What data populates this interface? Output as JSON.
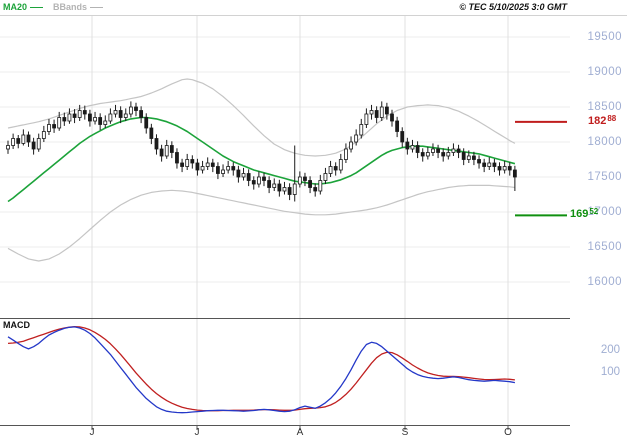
{
  "header": {
    "legend": [
      {
        "label": "MA20",
        "color": "#1ca33a"
      },
      {
        "label": "BBands",
        "color": "#b3b3b3"
      }
    ],
    "copyright": "© TEC 5/10/2025 3:0 GMT"
  },
  "price_axis": {
    "labels": [
      19500,
      19000,
      18500,
      18000,
      17500,
      17000,
      16500,
      16000
    ],
    "color": "#a0aed2"
  },
  "markers": {
    "upper": {
      "price": 18288,
      "main": "182",
      "sup": "88",
      "color": "#c01d1d"
    },
    "lower": {
      "price": 16952,
      "main": "169",
      "sup": "52",
      "color": "#0f8f0f"
    }
  },
  "macd": {
    "title": "MACD",
    "axis_labels": [
      200,
      100
    ]
  },
  "x_axis": {
    "ticks": [
      "J",
      "J",
      "A",
      "S",
      "O"
    ]
  },
  "chart_data": {
    "type": "candlestick",
    "title": "",
    "xlabel": "",
    "ylabel": "",
    "ylim": [
      16000,
      19500
    ],
    "x_tick_labels": [
      "J",
      "J",
      "A",
      "S",
      "O"
    ],
    "overlays": [
      "MA20",
      "Bollinger Bands"
    ],
    "sub_panel": {
      "type": "line",
      "name": "MACD",
      "ylim": [
        -140,
        345
      ],
      "axis_labels": [
        200,
        100
      ]
    },
    "colors": {
      "candle": "#1b1b1b",
      "ma20": "#1ca33a",
      "bbands": "#c5c5c5",
      "macd_fast": "#2438c8",
      "macd_signal": "#c02020",
      "marker_upper": "#c01d1d",
      "marker_lower": "#0f8f0f"
    },
    "series": {
      "candles": [
        [
          17900,
          18020,
          17830,
          17950
        ],
        [
          17950,
          18120,
          17900,
          18050
        ],
        [
          18050,
          18100,
          17910,
          17980
        ],
        [
          17980,
          18180,
          17950,
          18100
        ],
        [
          18100,
          18150,
          17930,
          18000
        ],
        [
          18000,
          18060,
          17820,
          17900
        ],
        [
          17900,
          18120,
          17860,
          18050
        ],
        [
          18050,
          18230,
          18000,
          18150
        ],
        [
          18150,
          18330,
          18100,
          18250
        ],
        [
          18250,
          18320,
          18130,
          18200
        ],
        [
          18200,
          18430,
          18160,
          18350
        ],
        [
          18350,
          18420,
          18230,
          18300
        ],
        [
          18300,
          18480,
          18260,
          18400
        ],
        [
          18400,
          18470,
          18270,
          18350
        ],
        [
          18350,
          18530,
          18300,
          18450
        ],
        [
          18450,
          18520,
          18320,
          18400
        ],
        [
          18400,
          18460,
          18220,
          18300
        ],
        [
          18300,
          18430,
          18250,
          18350
        ],
        [
          18350,
          18410,
          18170,
          18250
        ],
        [
          18250,
          18380,
          18200,
          18300
        ],
        [
          18300,
          18480,
          18260,
          18400
        ],
        [
          18400,
          18530,
          18350,
          18450
        ],
        [
          18450,
          18510,
          18270,
          18350
        ],
        [
          18350,
          18480,
          18300,
          18400
        ],
        [
          18400,
          18580,
          18350,
          18500
        ],
        [
          18500,
          18560,
          18370,
          18450
        ],
        [
          18450,
          18510,
          18270,
          18350
        ],
        [
          18350,
          18410,
          18120,
          18200
        ],
        [
          18200,
          18260,
          17970,
          18050
        ],
        [
          18050,
          18110,
          17820,
          17900
        ],
        [
          17900,
          17960,
          17720,
          17800
        ],
        [
          17800,
          18030,
          17760,
          17950
        ],
        [
          17950,
          18010,
          17770,
          17850
        ],
        [
          17850,
          17910,
          17620,
          17700
        ],
        [
          17700,
          17760,
          17570,
          17650
        ],
        [
          17650,
          17830,
          17600,
          17750
        ],
        [
          17750,
          17810,
          17620,
          17700
        ],
        [
          17700,
          17760,
          17520,
          17600
        ],
        [
          17600,
          17730,
          17550,
          17650
        ],
        [
          17650,
          17780,
          17600,
          17700
        ],
        [
          17700,
          17760,
          17570,
          17650
        ],
        [
          17650,
          17710,
          17470,
          17550
        ],
        [
          17550,
          17680,
          17500,
          17600
        ],
        [
          17600,
          17730,
          17550,
          17650
        ],
        [
          17650,
          17710,
          17520,
          17600
        ],
        [
          17600,
          17660,
          17420,
          17500
        ],
        [
          17500,
          17630,
          17450,
          17550
        ],
        [
          17550,
          17610,
          17370,
          17450
        ],
        [
          17450,
          17510,
          17320,
          17400
        ],
        [
          17400,
          17580,
          17350,
          17500
        ],
        [
          17500,
          17560,
          17370,
          17450
        ],
        [
          17450,
          17510,
          17270,
          17350
        ],
        [
          17350,
          17480,
          17300,
          17400
        ],
        [
          17400,
          17460,
          17220,
          17300
        ],
        [
          17300,
          17430,
          17250,
          17350
        ],
        [
          17350,
          17410,
          17170,
          17250
        ],
        [
          17250,
          17950,
          17150,
          17400
        ],
        [
          17400,
          17580,
          17350,
          17500
        ],
        [
          17500,
          17560,
          17370,
          17450
        ],
        [
          17450,
          17510,
          17270,
          17350
        ],
        [
          17350,
          17410,
          17220,
          17300
        ],
        [
          17300,
          17530,
          17250,
          17450
        ],
        [
          17450,
          17630,
          17400,
          17550
        ],
        [
          17550,
          17730,
          17500,
          17650
        ],
        [
          17650,
          17710,
          17520,
          17600
        ],
        [
          17600,
          17830,
          17550,
          17750
        ],
        [
          17750,
          17980,
          17700,
          17900
        ],
        [
          17900,
          18080,
          17850,
          18000
        ],
        [
          18000,
          18180,
          17950,
          18100
        ],
        [
          18100,
          18330,
          18050,
          18250
        ],
        [
          18250,
          18480,
          18200,
          18400
        ],
        [
          18400,
          18530,
          18320,
          18450
        ],
        [
          18450,
          18510,
          18270,
          18350
        ],
        [
          18350,
          18580,
          18300,
          18500
        ],
        [
          18500,
          18560,
          18320,
          18400
        ],
        [
          18400,
          18460,
          18220,
          18300
        ],
        [
          18300,
          18360,
          18070,
          18150
        ],
        [
          18150,
          18210,
          17920,
          18000
        ],
        [
          18000,
          18060,
          17820,
          17900
        ],
        [
          17900,
          18030,
          17850,
          17950
        ],
        [
          17950,
          18010,
          17770,
          17850
        ],
        [
          17850,
          17910,
          17720,
          17800
        ],
        [
          17800,
          17930,
          17750,
          17850
        ],
        [
          17850,
          17980,
          17800,
          17900
        ],
        [
          17900,
          17960,
          17770,
          17850
        ],
        [
          17850,
          17910,
          17720,
          17800
        ],
        [
          17800,
          17930,
          17750,
          17850
        ],
        [
          17850,
          17980,
          17800,
          17900
        ],
        [
          17900,
          17960,
          17770,
          17850
        ],
        [
          17850,
          17910,
          17670,
          17750
        ],
        [
          17750,
          17880,
          17700,
          17800
        ],
        [
          17800,
          17860,
          17670,
          17750
        ],
        [
          17750,
          17810,
          17620,
          17700
        ],
        [
          17700,
          17760,
          17570,
          17650
        ],
        [
          17650,
          17780,
          17600,
          17700
        ],
        [
          17700,
          17760,
          17570,
          17650
        ],
        [
          17650,
          17710,
          17520,
          17600
        ],
        [
          17600,
          17730,
          17550,
          17650
        ],
        [
          17650,
          17710,
          17520,
          17600
        ],
        [
          17600,
          17660,
          17300,
          17500
        ]
      ],
      "ma20": [
        17150,
        17200,
        17260,
        17320,
        17380,
        17440,
        17500,
        17560,
        17620,
        17680,
        17740,
        17800,
        17860,
        17920,
        17980,
        18030,
        18080,
        18120,
        18160,
        18200,
        18230,
        18260,
        18290,
        18310,
        18330,
        18340,
        18350,
        18350,
        18340,
        18330,
        18310,
        18290,
        18260,
        18230,
        18190,
        18150,
        18100,
        18050,
        18000,
        17950,
        17900,
        17850,
        17800,
        17760,
        17720,
        17690,
        17660,
        17630,
        17600,
        17580,
        17560,
        17540,
        17520,
        17500,
        17480,
        17460,
        17440,
        17430,
        17420,
        17410,
        17400,
        17400,
        17410,
        17420,
        17440,
        17460,
        17490,
        17520,
        17560,
        17610,
        17660,
        17710,
        17760,
        17810,
        17850,
        17880,
        17900,
        17920,
        17930,
        17940,
        17940,
        17940,
        17930,
        17920,
        17910,
        17900,
        17890,
        17880,
        17870,
        17860,
        17850,
        17840,
        17830,
        17810,
        17790,
        17770,
        17750,
        17730,
        17710,
        17690
      ],
      "bb_upper": [
        18200,
        18215,
        18230,
        18245,
        18260,
        18275,
        18290,
        18310,
        18330,
        18355,
        18380,
        18405,
        18430,
        18455,
        18480,
        18500,
        18520,
        18535,
        18550,
        18560,
        18570,
        18580,
        18590,
        18605,
        18620,
        18635,
        18650,
        18675,
        18700,
        18730,
        18760,
        18795,
        18830,
        18860,
        18890,
        18900,
        18890,
        18865,
        18840,
        18800,
        18760,
        18705,
        18650,
        18585,
        18520,
        18450,
        18380,
        18305,
        18230,
        18160,
        18090,
        18030,
        17970,
        17930,
        17890,
        17865,
        17840,
        17825,
        17810,
        17805,
        17800,
        17805,
        17810,
        17825,
        17840,
        17870,
        17900,
        17950,
        18000,
        18065,
        18130,
        18195,
        18260,
        18315,
        18370,
        18410,
        18450,
        18475,
        18500,
        18510,
        18520,
        18525,
        18530,
        18525,
        18520,
        18505,
        18490,
        18465,
        18440,
        18405,
        18370,
        18330,
        18290,
        18245,
        18200,
        18155,
        18110,
        18065,
        18020,
        17980
      ],
      "bb_lower": [
        16480,
        16440,
        16400,
        16365,
        16330,
        16315,
        16300,
        16315,
        16330,
        16365,
        16400,
        16450,
        16500,
        16560,
        16620,
        16685,
        16750,
        16815,
        16880,
        16940,
        17000,
        17050,
        17100,
        17140,
        17180,
        17210,
        17240,
        17260,
        17280,
        17290,
        17300,
        17305,
        17310,
        17305,
        17300,
        17290,
        17280,
        17265,
        17250,
        17235,
        17220,
        17205,
        17190,
        17175,
        17160,
        17145,
        17130,
        17115,
        17100,
        17085,
        17070,
        17055,
        17040,
        17025,
        17010,
        17000,
        16990,
        16980,
        16970,
        16965,
        16960,
        16960,
        16960,
        16965,
        16970,
        16980,
        16990,
        17000,
        17010,
        17020,
        17030,
        17045,
        17060,
        17080,
        17100,
        17125,
        17150,
        17175,
        17200,
        17225,
        17250,
        17270,
        17290,
        17305,
        17320,
        17335,
        17350,
        17360,
        17370,
        17375,
        17380,
        17380,
        17380,
        17380,
        17380,
        17375,
        17370,
        17365,
        17360,
        17350
      ],
      "macd_fast": [
        260,
        245,
        230,
        215,
        205,
        215,
        230,
        250,
        268,
        280,
        290,
        298,
        303,
        305,
        300,
        290,
        275,
        255,
        230,
        205,
        180,
        150,
        120,
        90,
        60,
        30,
        5,
        -20,
        -40,
        -58,
        -70,
        -78,
        -82,
        -84,
        -85,
        -84,
        -82,
        -80,
        -78,
        -76,
        -75,
        -74,
        -74,
        -75,
        -76,
        -77,
        -78,
        -77,
        -75,
        -72,
        -70,
        -72,
        -75,
        -78,
        -80,
        -78,
        -72,
        -62,
        -55,
        -60,
        -65,
        -55,
        -40,
        -20,
        5,
        35,
        70,
        110,
        155,
        195,
        225,
        235,
        230,
        215,
        195,
        175,
        155,
        135,
        115,
        100,
        88,
        80,
        75,
        72,
        70,
        72,
        75,
        78,
        75,
        70,
        65,
        62,
        60,
        58,
        60,
        62,
        60,
        58,
        56,
        52
      ],
      "macd_signal": [
        230,
        232,
        235,
        240,
        248,
        256,
        264,
        272,
        280,
        288,
        295,
        300,
        304,
        306,
        305,
        300,
        292,
        280,
        265,
        248,
        228,
        205,
        180,
        152,
        124,
        96,
        70,
        45,
        22,
        2,
        -15,
        -30,
        -42,
        -52,
        -60,
        -66,
        -70,
        -73,
        -75,
        -76,
        -76,
        -76,
        -75,
        -75,
        -74,
        -74,
        -74,
        -74,
        -73,
        -72,
        -71,
        -71,
        -72,
        -73,
        -74,
        -74,
        -73,
        -70,
        -67,
        -65,
        -64,
        -62,
        -58,
        -50,
        -38,
        -22,
        -2,
        22,
        50,
        80,
        110,
        140,
        165,
        182,
        190,
        188,
        178,
        164,
        148,
        132,
        118,
        106,
        96,
        89,
        84,
        81,
        80,
        80,
        79,
        77,
        74,
        71,
        68,
        66,
        65,
        66,
        67,
        68,
        67,
        64
      ]
    }
  }
}
